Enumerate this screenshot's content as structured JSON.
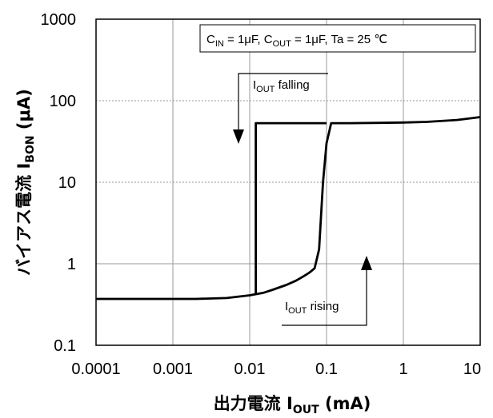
{
  "chart_data": {
    "type": "line",
    "title": "",
    "condition_label": {
      "c_in_main": "C",
      "c_in_sub": "IN",
      "c_in_value": " = 1μF, ",
      "c_out_main": "C",
      "c_out_sub": "OUT",
      "c_out_value": " = 1μF, Ta = 25 ℃"
    },
    "xlabel": {
      "prefix": "出力電流 ",
      "main": "I",
      "sub": "OUT",
      "suffix": " (mA)"
    },
    "ylabel": {
      "prefix": "バイアス電流 ",
      "main": "I",
      "sub": "BON",
      "suffix": " (μA)"
    },
    "x_scale": "log",
    "y_scale": "log",
    "xlim": [
      0.0001,
      10
    ],
    "ylim": [
      0.1,
      1000
    ],
    "x_tick_labels": [
      "0.0001",
      "0.001",
      "0.01",
      "0.1",
      "1",
      "10"
    ],
    "y_tick_labels": [
      "0.1",
      "1",
      "10",
      "100",
      "1000"
    ],
    "x_ticks": [
      0.0001,
      0.001,
      0.01,
      0.1,
      1,
      10
    ],
    "y_ticks": [
      0.1,
      1,
      10,
      100,
      1000
    ],
    "grid": true,
    "series": [
      {
        "name": "",
        "color": "#000000",
        "points": [
          [
            0.0001,
            0.37
          ],
          [
            0.0002,
            0.37
          ],
          [
            0.0005,
            0.37
          ],
          [
            0.001,
            0.37
          ],
          [
            0.002,
            0.37
          ],
          [
            0.005,
            0.38
          ],
          [
            0.01,
            0.41
          ],
          [
            0.015,
            0.44
          ],
          [
            0.02,
            0.48
          ],
          [
            0.03,
            0.55
          ],
          [
            0.04,
            0.62
          ],
          [
            0.05,
            0.7
          ],
          [
            0.06,
            0.78
          ],
          [
            0.07,
            0.88
          ],
          [
            0.08,
            1.5
          ],
          [
            0.09,
            10
          ],
          [
            0.1,
            30
          ],
          [
            0.115,
            53
          ],
          [
            0.2,
            53
          ],
          [
            0.5,
            53.5
          ],
          [
            1,
            54
          ],
          [
            2,
            55
          ],
          [
            5,
            58
          ],
          [
            10,
            63
          ]
        ]
      },
      {
        "name": "",
        "color": "#000000",
        "points": [
          [
            0.1,
            53
          ],
          [
            0.012,
            53
          ],
          [
            0.012,
            0.42
          ]
        ]
      }
    ],
    "annotations": [
      {
        "label_main": "I",
        "label_sub": "OUT",
        "label_rest": " falling",
        "arrow": "down"
      },
      {
        "label_main": "I",
        "label_sub": "OUT",
        "label_rest": " rising",
        "arrow": "up"
      }
    ]
  }
}
